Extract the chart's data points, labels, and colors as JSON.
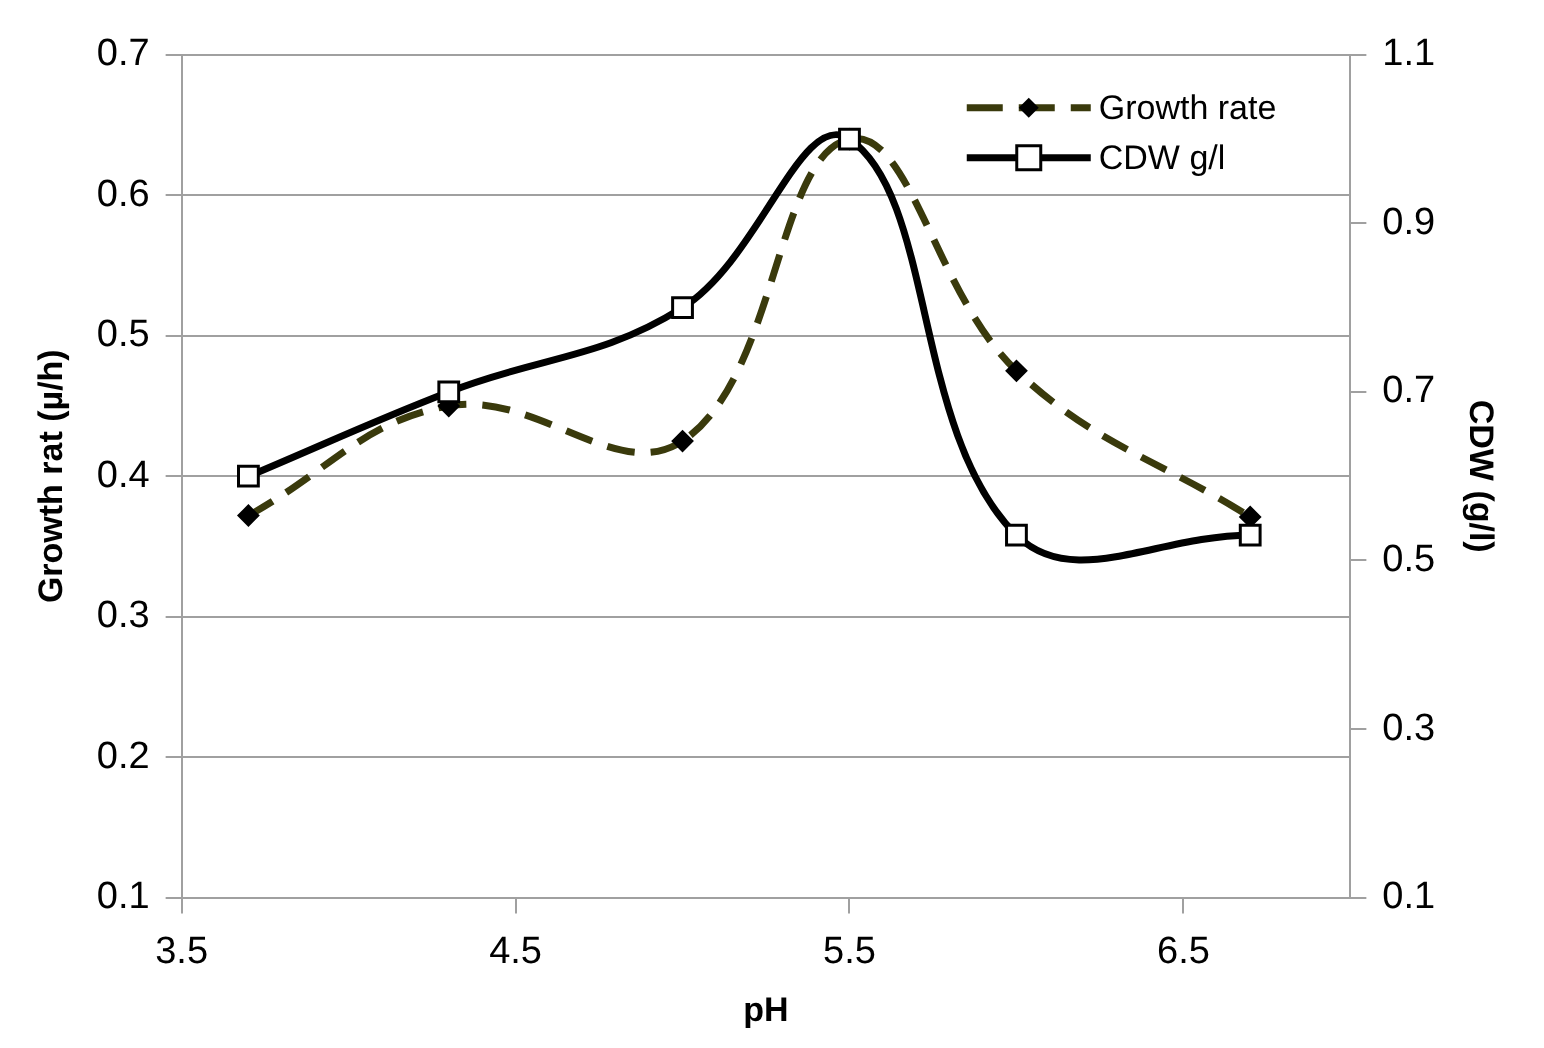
{
  "chart_data": {
    "type": "line",
    "xlabel": "pH",
    "ylabel": "Growth rat (µ/h)",
    "y2label": "CDW (g/l)",
    "x": [
      3.7,
      4.3,
      5.0,
      5.5,
      6.0,
      6.7
    ],
    "series": [
      {
        "name": "Growth rate",
        "color": "#3a3a0c",
        "values": [
          0.372,
          0.45,
          0.425,
          0.64,
          0.475,
          0.371
        ],
        "marker": "diamond",
        "line_style": "dashed"
      },
      {
        "name": "CDW g/l",
        "color": "#000000",
        "values": [
          0.6,
          0.7,
          0.8,
          1.0,
          0.53,
          0.53
        ],
        "marker": "square",
        "line_style": "solid",
        "axis": "y2"
      }
    ],
    "xlim": [
      3.5,
      7.0
    ],
    "xticks": [
      3.5,
      4.5,
      5.5,
      6.5
    ],
    "ylim": [
      0.1,
      0.7
    ],
    "yticks": [
      0.1,
      0.2,
      0.3,
      0.4,
      0.5,
      0.6,
      0.7
    ],
    "y2lim": [
      0.1,
      1.1
    ],
    "y2ticks": [
      0.1,
      0.3,
      0.5,
      0.7,
      0.9,
      1.1
    ],
    "grid": "y",
    "legend": "top right"
  }
}
